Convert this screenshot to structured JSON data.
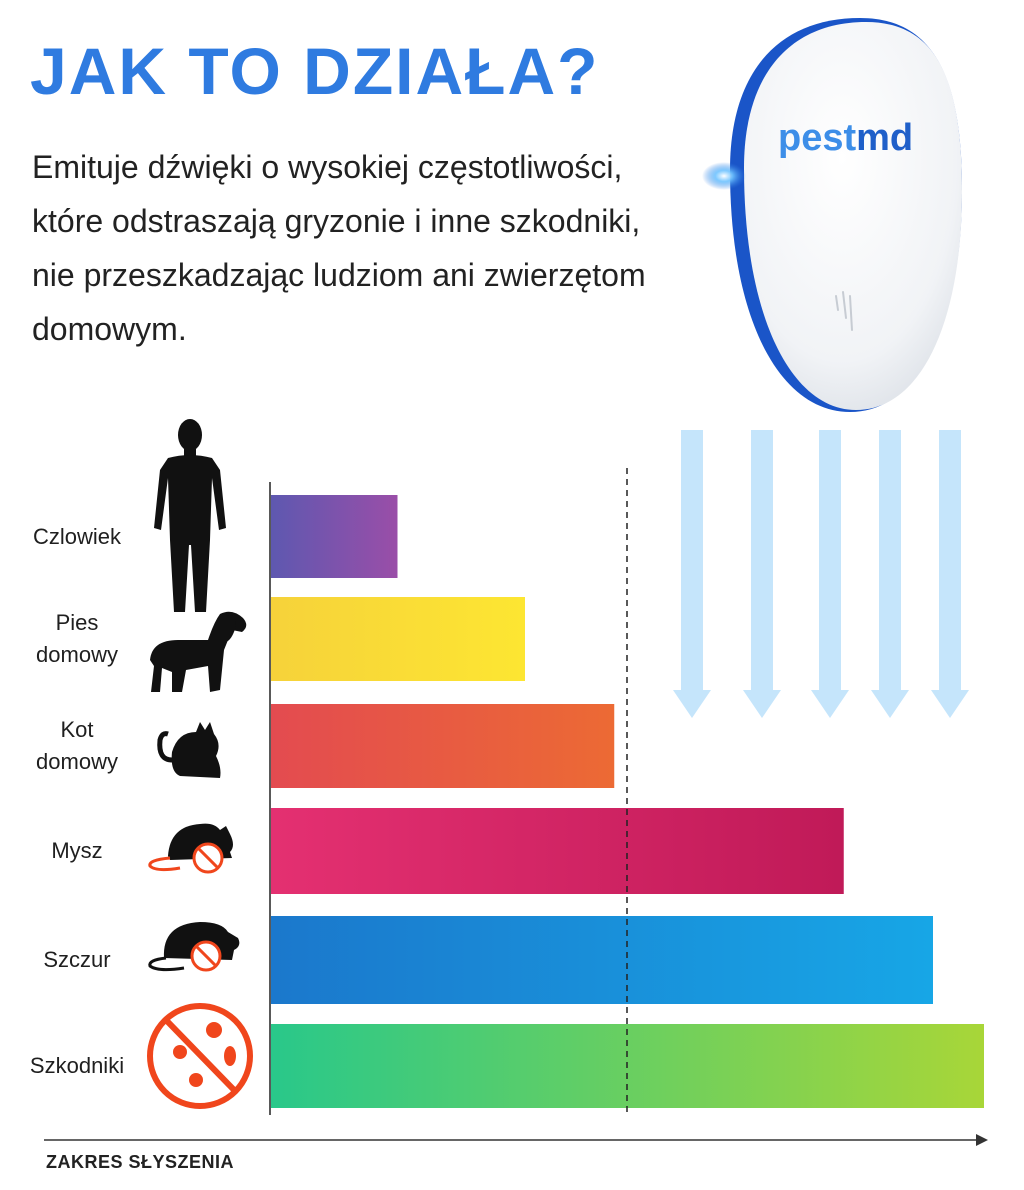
{
  "header": {
    "title": "JAK TO DZIAŁA?",
    "subtitle": "Emituje dźwięki o wysokiej częstotliwości, które odstraszają gryzonie i inne szkodniki, nie przeszkadzając ludziom ani zwierzętom domowym."
  },
  "device": {
    "brand_a": "pest",
    "brand_b": "md"
  },
  "colors": {
    "title": "#2f7be0",
    "arrows": "#c5e5fb",
    "brand_pest": "#3d8ee8",
    "brand_md": "#1f5fc9"
  },
  "chart_data": {
    "type": "bar",
    "orientation": "horizontal",
    "categories": [
      "Czlowiek",
      "Pies\ndomowy",
      "Kot\ndomowy",
      "Mysz",
      "Szczur",
      "Szkodniki"
    ],
    "values": [
      1.0,
      2.0,
      2.7,
      4.5,
      5.2,
      5.6
    ],
    "xlim": [
      0,
      5.6
    ],
    "threshold": 2.8,
    "xlabel": "ZAKRES SŁYSZENIA",
    "icons": [
      "person-icon",
      "dog-icon",
      "cat-icon",
      "mouse-icon",
      "rat-icon",
      "no-pests-icon"
    ],
    "bar_colors": [
      [
        "#5e58b0",
        "#9a4ea8"
      ],
      [
        "#f6d23a",
        "#fde632"
      ],
      [
        "#e34b50",
        "#ec6a34"
      ],
      [
        "#e43071",
        "#c01a58"
      ],
      [
        "#1b78cc",
        "#17a6e6"
      ],
      [
        "#29c88a",
        "#a8d638"
      ]
    ]
  }
}
